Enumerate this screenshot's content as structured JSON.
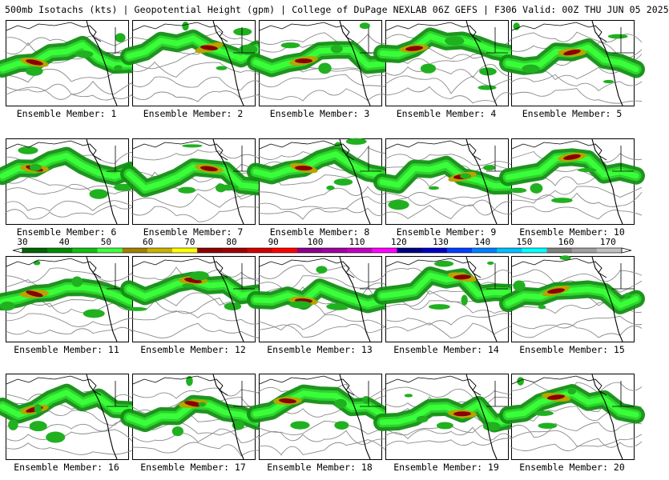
{
  "header": {
    "title": "500mb Isotachs (kts) | Geopotential Height (gpm) | College of DuPage NEXLAB   06Z GEFS | F306 Valid: 00Z THU JUN 05 2025"
  },
  "colorbar": {
    "labels": [
      "30",
      "40",
      "50",
      "60",
      "70",
      "80",
      "90",
      "100",
      "110",
      "120",
      "130",
      "140",
      "150",
      "160",
      "170"
    ],
    "colors": [
      "#006400",
      "#008c00",
      "#10c010",
      "#40ff40",
      "#a08000",
      "#c8b400",
      "#ffff00",
      "#8b0000",
      "#a00000",
      "#d00000",
      "#ff0000",
      "#8b008b",
      "#a000a0",
      "#c000c0",
      "#ff00ff",
      "#000080",
      "#0000c0",
      "#0040ff",
      "#0080ff",
      "#00c0ff",
      "#00ffff",
      "#808080",
      "#a0a0a0",
      "#c0c0c0"
    ]
  },
  "members": [
    {
      "label": "Ensemble Member: 1"
    },
    {
      "label": "Ensemble Member: 2"
    },
    {
      "label": "Ensemble Member: 3"
    },
    {
      "label": "Ensemble Member: 4"
    },
    {
      "label": "Ensemble Member: 5"
    },
    {
      "label": "Ensemble Member: 6"
    },
    {
      "label": "Ensemble Member: 7"
    },
    {
      "label": "Ensemble Member: 8"
    },
    {
      "label": "Ensemble Member: 9"
    },
    {
      "label": "Ensemble Member: 10"
    },
    {
      "label": "Ensemble Member: 11"
    },
    {
      "label": "Ensemble Member: 12"
    },
    {
      "label": "Ensemble Member: 13"
    },
    {
      "label": "Ensemble Member: 14"
    },
    {
      "label": "Ensemble Member: 15"
    },
    {
      "label": "Ensemble Member: 16"
    },
    {
      "label": "Ensemble Member: 17"
    },
    {
      "label": "Ensemble Member: 18"
    },
    {
      "label": "Ensemble Member: 19"
    },
    {
      "label": "Ensemble Member: 20"
    }
  ]
}
